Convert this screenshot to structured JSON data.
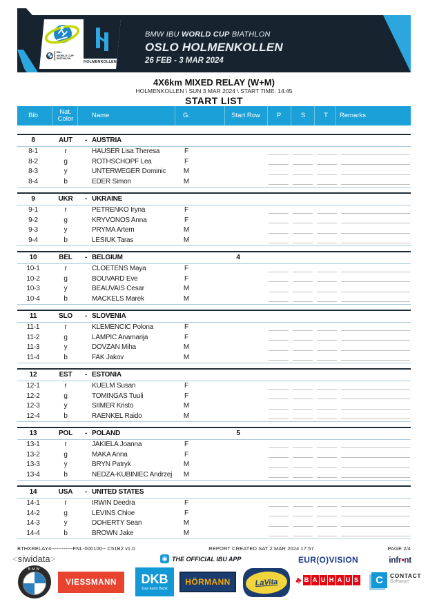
{
  "colors": {
    "band_navy": "#17242F",
    "accent_cyan": "#2BA6DE",
    "table_header_blue": "#1BA0D8",
    "separator_blue": "#A9CBDC"
  },
  "header": {
    "line1_a": "BMW IBU",
    "line1_b": "WORLD CUP",
    "line1_c": "BIATHLON",
    "line2": "OSLO HOLMENKOLLEN",
    "line3": "26 FEB - 3 MAR 2024",
    "ibu_mini_1": "IBU",
    "ibu_mini_2": "WORLD CUP",
    "ibu_mini_3": "BIATHLON",
    "holmenkollen_label": "HOLMENKOLLEN"
  },
  "title": {
    "event": "4X6km MIXED RELAY (W+M)",
    "subtitle": "HOLMENKOLLEN \\ SUN 3 MAR 2024 \\ START TIME: 14:45",
    "list_title": "START LIST"
  },
  "table": {
    "columns": {
      "bib": "Bib",
      "nat_line1": "Nat.",
      "nat_line2": "Color",
      "name": "Name",
      "g": "G.",
      "start_row": "Start Row",
      "p": "P",
      "s": "S",
      "t": "T",
      "remarks": "Remarks"
    },
    "team_dash": "-"
  },
  "teams": [
    {
      "bib": "8",
      "nat": "AUT",
      "name": "AUSTRIA",
      "start_row": "",
      "athletes": [
        {
          "bib": "8-1",
          "color": "r",
          "name": "HAUSER Lisa Theresa",
          "g": "F"
        },
        {
          "bib": "8-2",
          "color": "g",
          "name": "ROTHSCHOPF Lea",
          "g": "F"
        },
        {
          "bib": "8-3",
          "color": "y",
          "name": "UNTERWEGER Dominic",
          "g": "M"
        },
        {
          "bib": "8-4",
          "color": "b",
          "name": "EDER Simon",
          "g": "M"
        }
      ]
    },
    {
      "bib": "9",
      "nat": "UKR",
      "name": "UKRAINE",
      "start_row": "",
      "athletes": [
        {
          "bib": "9-1",
          "color": "r",
          "name": "PETRENKO Iryna",
          "g": "F"
        },
        {
          "bib": "9-2",
          "color": "g",
          "name": "KRYVONOS Anna",
          "g": "F"
        },
        {
          "bib": "9-3",
          "color": "y",
          "name": "PRYMA Artem",
          "g": "M"
        },
        {
          "bib": "9-4",
          "color": "b",
          "name": "LESIUK Taras",
          "g": "M"
        }
      ]
    },
    {
      "bib": "10",
      "nat": "BEL",
      "name": "BELGIUM",
      "start_row": "4",
      "athletes": [
        {
          "bib": "10-1",
          "color": "r",
          "name": "CLOETENS Maya",
          "g": "F"
        },
        {
          "bib": "10-2",
          "color": "g",
          "name": "BOUVARD Eve",
          "g": "F"
        },
        {
          "bib": "10-3",
          "color": "y",
          "name": "BEAUVAIS Cesar",
          "g": "M"
        },
        {
          "bib": "10-4",
          "color": "b",
          "name": "MACKELS Marek",
          "g": "M"
        }
      ]
    },
    {
      "bib": "11",
      "nat": "SLO",
      "name": "SLOVENIA",
      "start_row": "",
      "athletes": [
        {
          "bib": "11-1",
          "color": "r",
          "name": "KLEMENCIC Polona",
          "g": "F"
        },
        {
          "bib": "11-2",
          "color": "g",
          "name": "LAMPIC Anamarija",
          "g": "F"
        },
        {
          "bib": "11-3",
          "color": "y",
          "name": "DOVZAN Miha",
          "g": "M"
        },
        {
          "bib": "11-4",
          "color": "b",
          "name": "FAK Jakov",
          "g": "M"
        }
      ]
    },
    {
      "bib": "12",
      "nat": "EST",
      "name": "ESTONIA",
      "start_row": "",
      "athletes": [
        {
          "bib": "12-1",
          "color": "r",
          "name": "KUELM Susan",
          "g": "F"
        },
        {
          "bib": "12-2",
          "color": "g",
          "name": "TOMINGAS Tuuli",
          "g": "F"
        },
        {
          "bib": "12-3",
          "color": "y",
          "name": "SIIMER Kristo",
          "g": "M"
        },
        {
          "bib": "12-4",
          "color": "b",
          "name": "RAENKEL Raido",
          "g": "M"
        }
      ]
    },
    {
      "bib": "13",
      "nat": "POL",
      "name": "POLAND",
      "start_row": "5",
      "athletes": [
        {
          "bib": "13-1",
          "color": "r",
          "name": "JAKIELA Joanna",
          "g": "F"
        },
        {
          "bib": "13-2",
          "color": "g",
          "name": "MAKA Anna",
          "g": "F"
        },
        {
          "bib": "13-3",
          "color": "y",
          "name": "BRYN Patryk",
          "g": "M"
        },
        {
          "bib": "13-4",
          "color": "b",
          "name": "NEDZA-KUBINIEC Andrzej",
          "g": "M"
        }
      ]
    },
    {
      "bib": "14",
      "nat": "USA",
      "name": "UNITED STATES",
      "start_row": "",
      "athletes": [
        {
          "bib": "14-1",
          "color": "r",
          "name": "IRWIN Deedra",
          "g": "F"
        },
        {
          "bib": "14-2",
          "color": "g",
          "name": "LEVINS Chloe",
          "g": "F"
        },
        {
          "bib": "14-3",
          "color": "y",
          "name": "DOHERTY Sean",
          "g": "M"
        },
        {
          "bib": "14-4",
          "color": "b",
          "name": "BROWN Jake",
          "g": "M"
        }
      ]
    }
  ],
  "footer": {
    "code": "BTHXRELAY4------------FNL-000100-- C51B2 v1.0",
    "report": "REPORT CREATED SAT 2 MAR 2024 17:57",
    "page": "PAGE 2/4",
    "siwidata_open": "<",
    "siwidata": "siwidata",
    "siwidata_close": ">",
    "app_label": "THE OFFICIAL IBU APP",
    "eurovision": "EUR(O)VISION",
    "infront_a": "infr",
    "infront_dot": "•",
    "infront_b": "nt",
    "sponsors": {
      "bmw": "BMW",
      "viessmann": "VIESSMANN",
      "dkb": "DKB",
      "dkb_sub": "Das kann Bank",
      "hoermann": "HÖRMANN",
      "lavita": "LaVita",
      "bauhaus": "BAUHAUS",
      "contact": "CONTACT",
      "contact_sub": "Software"
    }
  }
}
